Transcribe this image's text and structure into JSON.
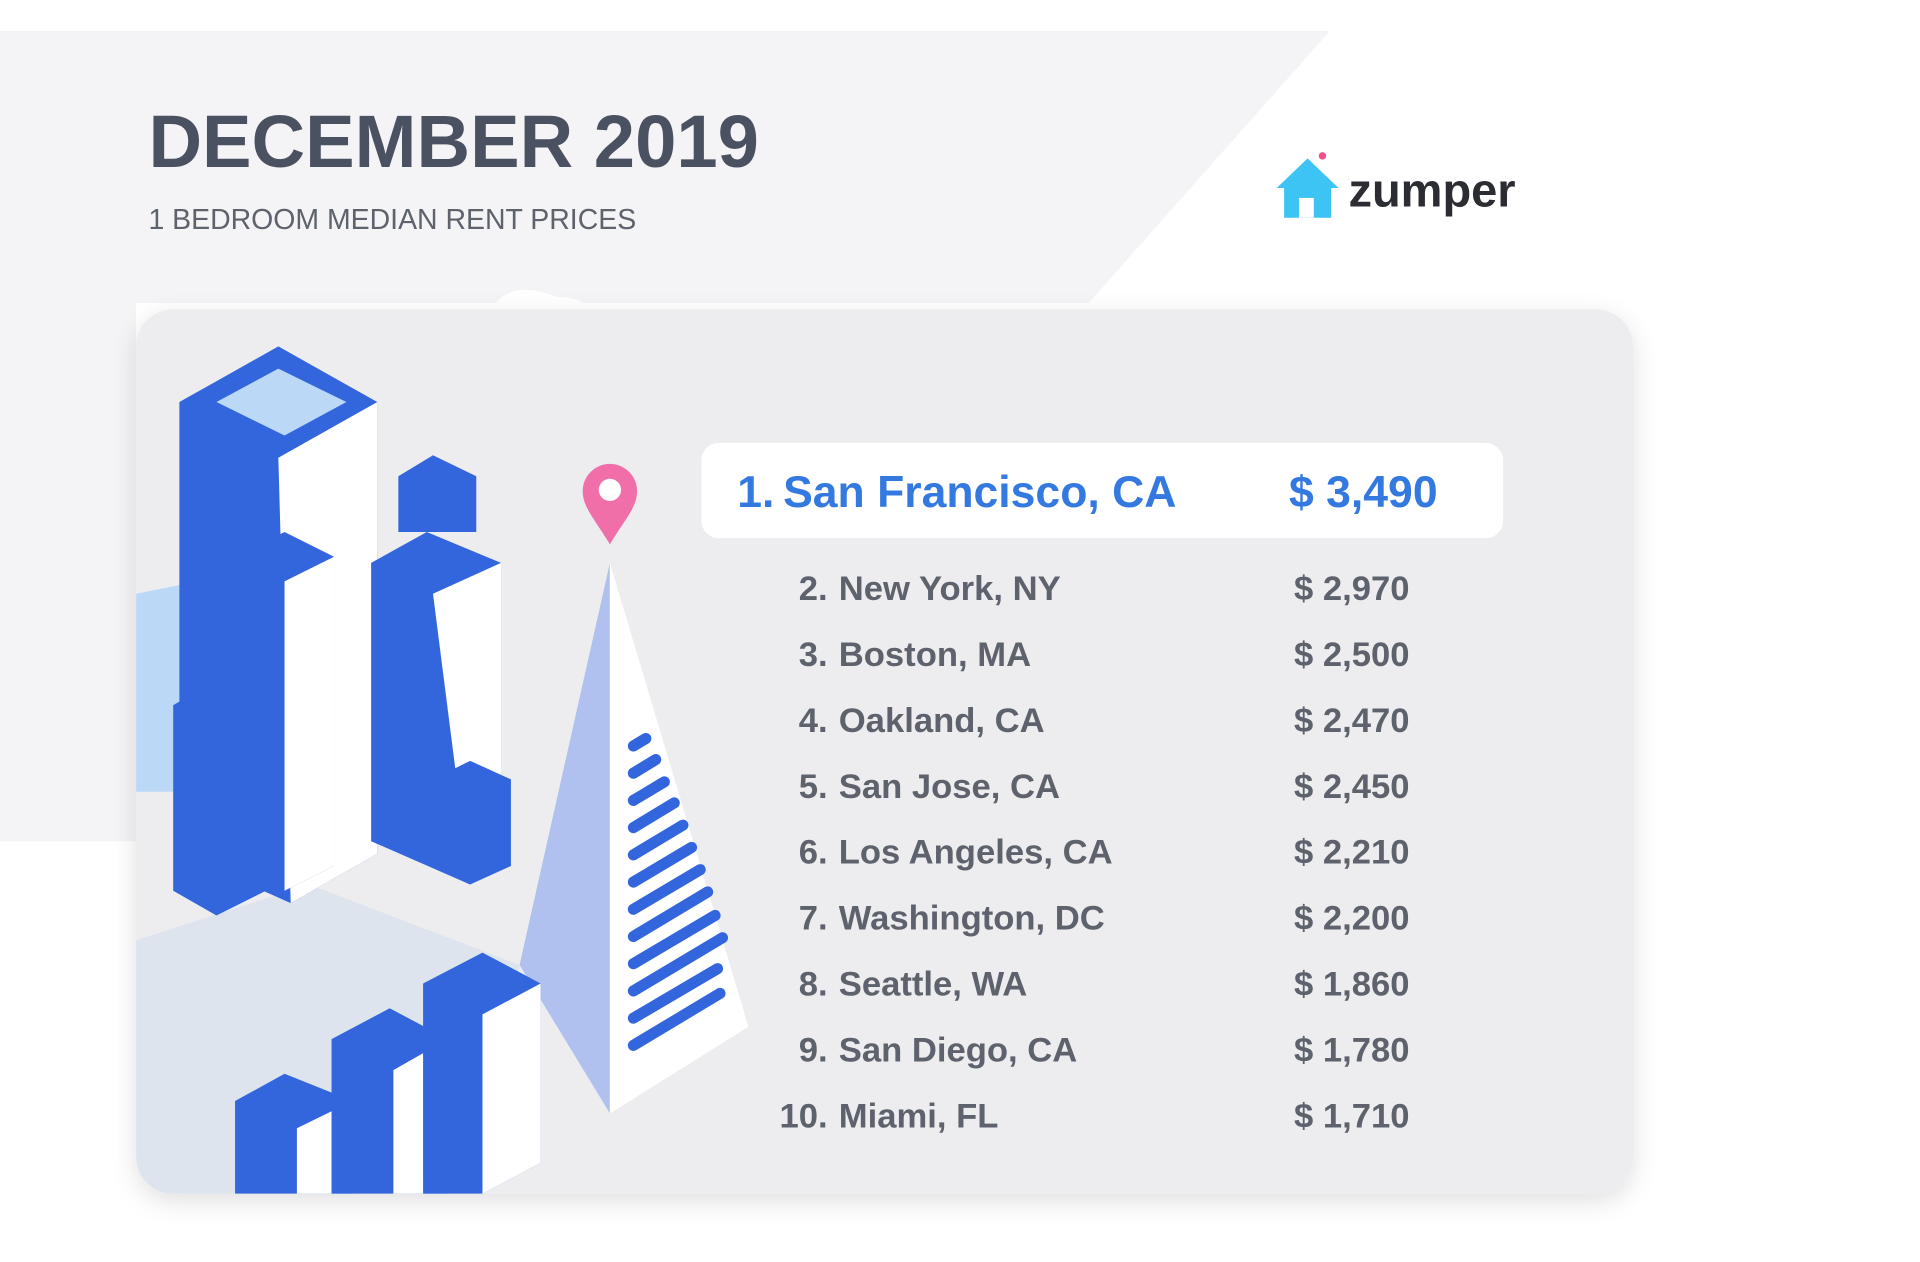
{
  "header": {
    "title": "DECEMBER 2019",
    "subtitle": "1 BEDROOM MEDIAN RENT PRICES"
  },
  "logo": {
    "text": "zumper"
  },
  "rankings": [
    {
      "rank": "1.",
      "city": "San Francisco, CA",
      "price": "$ 3,490"
    },
    {
      "rank": "2.",
      "city": "New York, NY",
      "price": "$ 2,970"
    },
    {
      "rank": "3.",
      "city": "Boston, MA",
      "price": "$ 2,500"
    },
    {
      "rank": "4.",
      "city": "Oakland, CA",
      "price": "$ 2,470"
    },
    {
      "rank": "5.",
      "city": "San Jose, CA",
      "price": "$ 2,450"
    },
    {
      "rank": "6.",
      "city": "Los Angeles, CA",
      "price": "$ 2,210"
    },
    {
      "rank": "7.",
      "city": "Washington, DC",
      "price": "$ 2,200"
    },
    {
      "rank": "8.",
      "city": "Seattle, WA",
      "price": "$ 1,860"
    },
    {
      "rank": "9.",
      "city": "San Diego, CA",
      "price": "$ 1,780"
    },
    {
      "rank": "10.",
      "city": "Miami, FL",
      "price": "$ 1,710"
    }
  ]
}
